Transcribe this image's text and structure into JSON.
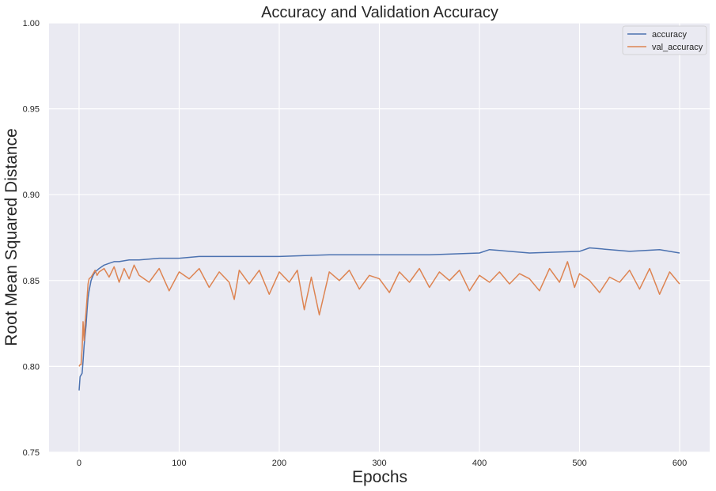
{
  "chart_data": {
    "type": "line",
    "title": "Accuracy and Validation Accuracy",
    "xlabel": "Epochs",
    "ylabel": "Root Mean Squared Distance",
    "xlim": [
      -30,
      630
    ],
    "ylim": [
      0.75,
      1.0
    ],
    "xticks": [
      "0",
      "100",
      "200",
      "300",
      "400",
      "500",
      "600"
    ],
    "yticks": [
      "0.75",
      "0.80",
      "0.85",
      "0.90",
      "0.95",
      "1.00"
    ],
    "grid": true,
    "background": "#EAEAF2",
    "legend": {
      "position": "upper-right",
      "entries": [
        "accuracy",
        "val_accuracy"
      ]
    },
    "series": [
      {
        "name": "accuracy",
        "color": "#4C72B0",
        "x": [
          0,
          1,
          2,
          3,
          4,
          5,
          6,
          7,
          8,
          9,
          10,
          12,
          14,
          16,
          18,
          20,
          25,
          30,
          35,
          40,
          50,
          60,
          80,
          100,
          120,
          150,
          180,
          200,
          250,
          300,
          350,
          400,
          410,
          450,
          500,
          510,
          550,
          580,
          600
        ],
        "y": [
          0.786,
          0.794,
          0.795,
          0.796,
          0.803,
          0.812,
          0.818,
          0.824,
          0.833,
          0.84,
          0.844,
          0.85,
          0.853,
          0.855,
          0.856,
          0.857,
          0.859,
          0.86,
          0.861,
          0.861,
          0.862,
          0.862,
          0.863,
          0.863,
          0.864,
          0.864,
          0.864,
          0.864,
          0.865,
          0.865,
          0.865,
          0.866,
          0.868,
          0.866,
          0.867,
          0.869,
          0.867,
          0.868,
          0.866
        ]
      },
      {
        "name": "val_accuracy",
        "color": "#DD8452",
        "x": [
          0,
          1,
          2,
          3,
          4,
          5,
          6,
          7,
          8,
          9,
          10,
          12,
          14,
          16,
          18,
          20,
          25,
          30,
          35,
          40,
          45,
          50,
          55,
          60,
          70,
          80,
          90,
          100,
          110,
          120,
          130,
          140,
          150,
          155,
          160,
          170,
          180,
          190,
          200,
          210,
          218,
          225,
          232,
          240,
          250,
          260,
          270,
          280,
          290,
          300,
          310,
          320,
          330,
          340,
          350,
          360,
          370,
          380,
          390,
          400,
          410,
          420,
          430,
          440,
          450,
          460,
          470,
          480,
          488,
          495,
          500,
          510,
          520,
          530,
          540,
          550,
          560,
          570,
          580,
          590,
          600
        ],
        "y": [
          0.8,
          0.801,
          0.801,
          0.81,
          0.826,
          0.815,
          0.825,
          0.832,
          0.84,
          0.848,
          0.851,
          0.852,
          0.854,
          0.856,
          0.853,
          0.855,
          0.857,
          0.852,
          0.858,
          0.849,
          0.857,
          0.851,
          0.859,
          0.853,
          0.849,
          0.857,
          0.844,
          0.855,
          0.851,
          0.857,
          0.846,
          0.855,
          0.849,
          0.839,
          0.856,
          0.848,
          0.856,
          0.842,
          0.855,
          0.849,
          0.856,
          0.833,
          0.852,
          0.83,
          0.855,
          0.85,
          0.856,
          0.845,
          0.853,
          0.851,
          0.843,
          0.855,
          0.849,
          0.857,
          0.846,
          0.855,
          0.85,
          0.856,
          0.844,
          0.853,
          0.849,
          0.855,
          0.848,
          0.854,
          0.851,
          0.844,
          0.857,
          0.849,
          0.861,
          0.846,
          0.854,
          0.85,
          0.843,
          0.852,
          0.849,
          0.856,
          0.845,
          0.857,
          0.842,
          0.855,
          0.848
        ]
      }
    ]
  }
}
